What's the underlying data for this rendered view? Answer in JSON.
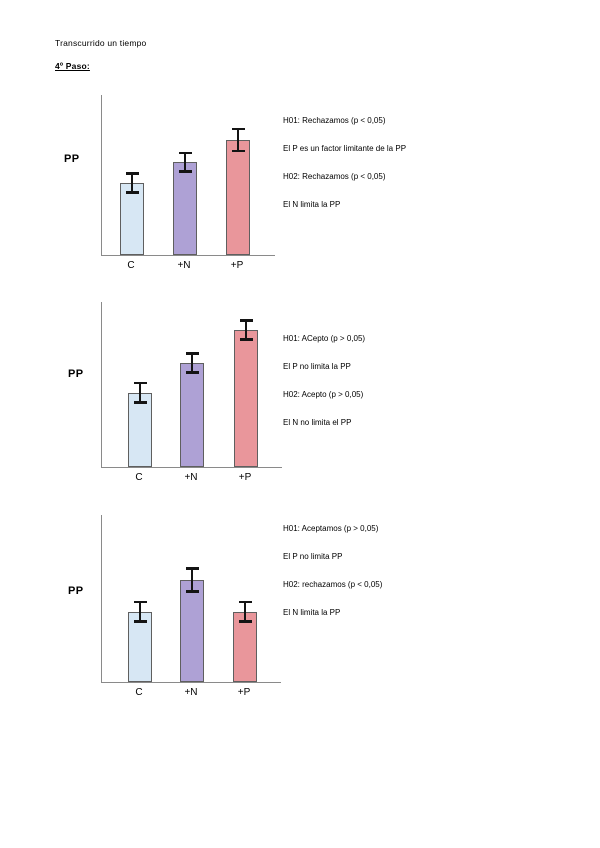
{
  "page": {
    "intro_text": "Transcurrido un tiempo",
    "step_heading": "4º Paso:"
  },
  "colors": {
    "bar_control": "#d7e7f4",
    "bar_nitrogen": "#aea1d5",
    "bar_phosphorus": "#e9969b",
    "bar_border": "#5f5f5f",
    "axis": "#8a8a8a",
    "error_bar": "#141414",
    "text": "#000000"
  },
  "chart_data": [
    {
      "type": "bar",
      "title": "",
      "xlabel": "",
      "ylabel": "PP",
      "categories": [
        "C",
        "+N",
        "+P"
      ],
      "values": [
        45,
        58,
        72
      ],
      "errors": [
        6,
        6,
        7
      ],
      "ylim": [
        0,
        100
      ],
      "grid": false,
      "axis_tick_labels": "none (unlabeled relative axis)",
      "bar_colors": [
        "#d7e7f4",
        "#aea1d5",
        "#e9969b"
      ],
      "annotations": [
        "H01: Rechazamos (p < 0,05)",
        "El P es un factor limitante de la PP",
        "H02: Rechazamos (p < 0,05)",
        "El N limita la PP"
      ]
    },
    {
      "type": "bar",
      "title": "",
      "xlabel": "",
      "ylabel": "PP",
      "categories": [
        "C",
        "+N",
        "+P"
      ],
      "values": [
        45,
        63,
        83
      ],
      "errors": [
        6,
        6,
        6
      ],
      "ylim": [
        0,
        100
      ],
      "grid": false,
      "axis_tick_labels": "none (unlabeled relative axis)",
      "bar_colors": [
        "#d7e7f4",
        "#aea1d5",
        "#e9969b"
      ],
      "annotations": [
        "H01: ACepto (p > 0,05)",
        "El P no limita la PP",
        "H02: Acepto (p > 0,05)",
        "El N no limita el PP"
      ]
    },
    {
      "type": "bar",
      "title": "",
      "xlabel": "",
      "ylabel": "PP",
      "categories": [
        "C",
        "+N",
        "+P"
      ],
      "values": [
        42,
        61,
        42
      ],
      "errors": [
        6,
        7,
        6
      ],
      "ylim": [
        0,
        100
      ],
      "grid": false,
      "axis_tick_labels": "none (unlabeled relative axis)",
      "bar_colors": [
        "#d7e7f4",
        "#aea1d5",
        "#e9969b"
      ],
      "annotations": [
        "H01: Aceptamos (p > 0,05)",
        "El P no limita PP",
        "H02: rechazamos (p < 0,05)",
        "El N limita la PP"
      ]
    }
  ]
}
